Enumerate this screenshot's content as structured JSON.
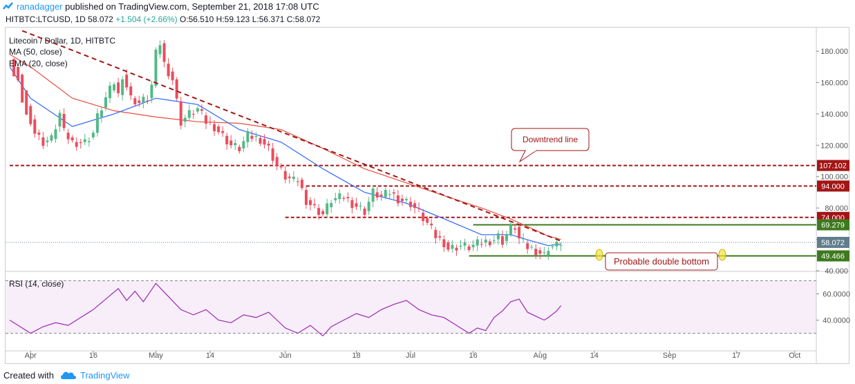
{
  "header": {
    "author": "ranadagger",
    "published_text": "published on TradingView.com, September 21, 2018 17:08 UTC"
  },
  "infobar": {
    "symbol": "HITBTC:LTCUSD, 1D",
    "last": "58.072",
    "change": "+1.504 (+2.66%)",
    "o": "O:56.510",
    "h": "H:59.123",
    "l": "L:56.371",
    "c": "C:58.072"
  },
  "legend": {
    "title": "Litecoin / Dollar, 1D, HITBTC",
    "ma": "MA (50, close)",
    "ema": "EMA (20, close)",
    "rsi": "RSI (14, close)"
  },
  "annotations": {
    "downtrend": "Downtrend line",
    "double_bottom": "Probable double bottom"
  },
  "footer": {
    "made_with": "Created with",
    "brand": "TradingView"
  },
  "colors": {
    "up_candle": "#53b987",
    "down_candle": "#eb4d5c",
    "ma": "#e84c3d",
    "ema": "#2962ff",
    "rsi": "#9c27b0",
    "resistance": "#a31515",
    "support": "#3d7a1e",
    "trendline": "#a31515",
    "price_tag": "#607d8b"
  },
  "chart_data": {
    "type": "candlestick",
    "title": "Litecoin / Dollar, 1D, HITBTC",
    "x_ticks": [
      "Apr",
      "16",
      "May",
      "14",
      "Jun",
      "18",
      "Jul",
      "16",
      "Aug",
      "14",
      "Sep",
      "17",
      "Oct"
    ],
    "x_tick_days": [
      0,
      15,
      30,
      43,
      61,
      78,
      91,
      106,
      122,
      135,
      153,
      169,
      183
    ],
    "y_ticks": [
      "180.000",
      "160.000",
      "140.000",
      "120.000",
      "100.000",
      "80.000",
      "60.000",
      "40.000"
    ],
    "y_tick_values": [
      180,
      160,
      140,
      120,
      100,
      80,
      60,
      40
    ],
    "ylim": [
      40,
      195
    ],
    "price_series": [
      [
        -5,
        175
      ],
      [
        -3,
        165
      ],
      [
        -1,
        145
      ],
      [
        1,
        128
      ],
      [
        3,
        122
      ],
      [
        5,
        124
      ],
      [
        7,
        140
      ],
      [
        8,
        128
      ],
      [
        10,
        122
      ],
      [
        13,
        122
      ],
      [
        15,
        128
      ],
      [
        16,
        138
      ],
      [
        18,
        150
      ],
      [
        20,
        160
      ],
      [
        21,
        152
      ],
      [
        22,
        165
      ],
      [
        24,
        150
      ],
      [
        26,
        147
      ],
      [
        28,
        150
      ],
      [
        29,
        158
      ],
      [
        30,
        178
      ],
      [
        31,
        185
      ],
      [
        32,
        172
      ],
      [
        34,
        162
      ],
      [
        35,
        148
      ],
      [
        36,
        135
      ],
      [
        38,
        140
      ],
      [
        40,
        143
      ],
      [
        42,
        135
      ],
      [
        44,
        132
      ],
      [
        46,
        126
      ],
      [
        48,
        120
      ],
      [
        50,
        118
      ],
      [
        51,
        122
      ],
      [
        52,
        126
      ],
      [
        55,
        124
      ],
      [
        57,
        118
      ],
      [
        59,
        107
      ],
      [
        61,
        100
      ],
      [
        63,
        97
      ],
      [
        64,
        98
      ],
      [
        66,
        85
      ],
      [
        68,
        80
      ],
      [
        70,
        76
      ],
      [
        72,
        85
      ],
      [
        75,
        87
      ],
      [
        77,
        83
      ],
      [
        80,
        78
      ],
      [
        82,
        90
      ],
      [
        84,
        87
      ],
      [
        86,
        90
      ],
      [
        88,
        86
      ],
      [
        91,
        83
      ],
      [
        93,
        77
      ],
      [
        95,
        70
      ],
      [
        97,
        62
      ],
      [
        99,
        58
      ],
      [
        100,
        54
      ],
      [
        103,
        56
      ],
      [
        105,
        55
      ],
      [
        106,
        56
      ],
      [
        108,
        58
      ],
      [
        111,
        60
      ],
      [
        112,
        62
      ],
      [
        113,
        59
      ],
      [
        115,
        67
      ],
      [
        116,
        68
      ],
      [
        117,
        60
      ],
      [
        119,
        55
      ],
      [
        121,
        53
      ],
      [
        123,
        50
      ],
      [
        124,
        55
      ],
      [
        126,
        56
      ],
      [
        127,
        58
      ]
    ],
    "ma50_series": [
      [
        -5,
        178
      ],
      [
        0,
        170
      ],
      [
        10,
        150
      ],
      [
        20,
        142
      ],
      [
        30,
        138
      ],
      [
        40,
        135
      ],
      [
        50,
        134
      ],
      [
        60,
        130
      ],
      [
        70,
        118
      ],
      [
        80,
        105
      ],
      [
        90,
        96
      ],
      [
        100,
        87
      ],
      [
        108,
        80
      ],
      [
        115,
        73
      ],
      [
        120,
        67
      ],
      [
        124,
        62
      ],
      [
        127,
        60
      ]
    ],
    "ema20_series": [
      [
        -5,
        170
      ],
      [
        0,
        150
      ],
      [
        10,
        132
      ],
      [
        20,
        140
      ],
      [
        30,
        150
      ],
      [
        40,
        146
      ],
      [
        50,
        130
      ],
      [
        60,
        122
      ],
      [
        70,
        105
      ],
      [
        80,
        90
      ],
      [
        90,
        83
      ],
      [
        100,
        72
      ],
      [
        108,
        63
      ],
      [
        115,
        63
      ],
      [
        120,
        59
      ],
      [
        124,
        56
      ],
      [
        127,
        57
      ]
    ],
    "rsi_series": [
      [
        -5,
        40
      ],
      [
        -2,
        34
      ],
      [
        0,
        30
      ],
      [
        3,
        35
      ],
      [
        6,
        38
      ],
      [
        9,
        36
      ],
      [
        12,
        42
      ],
      [
        15,
        48
      ],
      [
        18,
        56
      ],
      [
        21,
        64
      ],
      [
        23,
        55
      ],
      [
        25,
        62
      ],
      [
        27,
        54
      ],
      [
        30,
        68
      ],
      [
        33,
        58
      ],
      [
        36,
        48
      ],
      [
        39,
        44
      ],
      [
        42,
        48
      ],
      [
        45,
        40
      ],
      [
        48,
        38
      ],
      [
        51,
        44
      ],
      [
        54,
        42
      ],
      [
        57,
        46
      ],
      [
        59,
        40
      ],
      [
        61,
        34
      ],
      [
        64,
        30
      ],
      [
        67,
        36
      ],
      [
        70,
        28
      ],
      [
        72,
        35
      ],
      [
        75,
        40
      ],
      [
        78,
        45
      ],
      [
        81,
        42
      ],
      [
        84,
        48
      ],
      [
        87,
        52
      ],
      [
        90,
        55
      ],
      [
        93,
        48
      ],
      [
        96,
        44
      ],
      [
        99,
        42
      ],
      [
        102,
        36
      ],
      [
        105,
        30
      ],
      [
        107,
        34
      ],
      [
        109,
        32
      ],
      [
        111,
        42
      ],
      [
        113,
        47
      ],
      [
        115,
        54
      ],
      [
        117,
        56
      ],
      [
        119,
        46
      ],
      [
        121,
        43
      ],
      [
        123,
        40
      ],
      [
        124,
        42
      ],
      [
        126,
        47
      ],
      [
        127,
        51
      ]
    ],
    "rsi_ticks": [
      "60.0000",
      "40.0000"
    ],
    "rsi_tick_values": [
      60,
      40
    ],
    "rsi_range": [
      25,
      75
    ],
    "rsi_bands": [
      70,
      30
    ],
    "levels": [
      {
        "value": 107.102,
        "label": "107.102",
        "kind": "resistance",
        "from_day": -5
      },
      {
        "value": 94.0,
        "label": "94.000",
        "kind": "resistance",
        "from_day": 66
      },
      {
        "value": 74.0,
        "label": "74.000",
        "kind": "resistance",
        "from_day": 61
      },
      {
        "value": 69.279,
        "label": "69.279",
        "kind": "support",
        "from_day": 106
      },
      {
        "value": 49.466,
        "label": "49.466",
        "kind": "support",
        "from_day": 105
      }
    ],
    "last_price": {
      "value": 58.072,
      "label": "58.072"
    },
    "trendline": {
      "from": [
        -2,
        193
      ],
      "to": [
        127,
        59
      ]
    }
  }
}
